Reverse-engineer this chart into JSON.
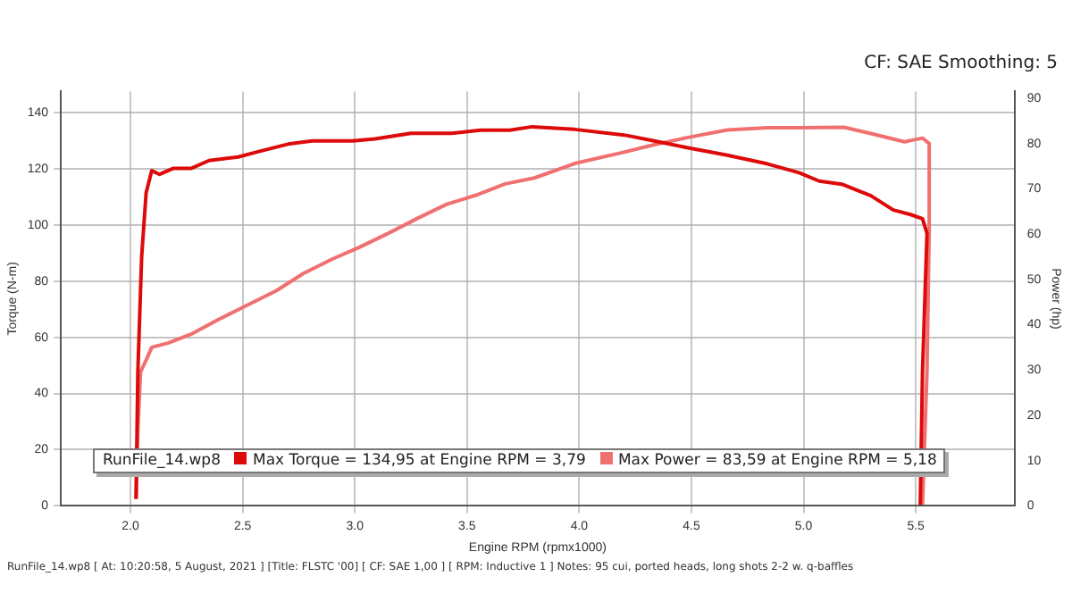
{
  "chart_data": {
    "type": "line",
    "title": "CF: SAE Smoothing: 5",
    "xlabel": "Engine RPM (rpmx1000)",
    "ylabel": "Torque (N-m)",
    "y2label": "Power (hp)",
    "legend_title": "RunFile_14.wp8",
    "legend": "bottom",
    "grid": true,
    "marker": "none",
    "line_style": "solid",
    "xlim": [
      1.69,
      5.94
    ],
    "xticks": [
      {
        "value": 2,
        "label": "2.0"
      },
      2.5,
      {
        "value": 3,
        "label": "3.0"
      },
      3.5,
      {
        "value": 4,
        "label": "4.0"
      },
      4.5,
      {
        "value": 5,
        "label": "5.0"
      },
      5.5
    ],
    "ylim": [
      0,
      147.5
    ],
    "yticks": [
      0,
      20,
      40,
      60,
      80,
      100,
      120,
      140
    ],
    "y2lim": [
      0,
      91.5
    ],
    "y2ticks": [
      0,
      10,
      20,
      30,
      40,
      50,
      60,
      70,
      80,
      90
    ],
    "series": [
      {
        "name": "Max Torque = 134,95 at Engine RPM = 3,79",
        "color": "#dd0a0a",
        "x": [
          2.025,
          2.033,
          2.05,
          2.07,
          2.095,
          2.13,
          2.19,
          2.27,
          2.35,
          2.48,
          2.58,
          2.71,
          2.81,
          2.99,
          3.09,
          3.25,
          3.43,
          3.56,
          3.69,
          3.79,
          3.98,
          4.2,
          4.33,
          4.48,
          4.66,
          4.84,
          4.98,
          5.07,
          5.17,
          5.3,
          5.4,
          5.48,
          5.53,
          5.55,
          5.53,
          5.52
        ],
        "values": [
          2.5,
          47.7,
          88.8,
          111.5,
          119.3,
          118,
          120.1,
          120.1,
          122.9,
          124.2,
          126.3,
          128.9,
          129.9,
          129.9,
          130.6,
          132.6,
          132.6,
          133.7,
          133.7,
          134.95,
          134,
          132,
          130,
          127.5,
          124.8,
          121.7,
          118.6,
          115.6,
          114.5,
          110.4,
          105.3,
          103.6,
          102.2,
          97,
          47.7,
          0.4
        ]
      },
      {
        "name": "Max Power = 83,59 at Engine RPM = 5,18",
        "color": "#f07070",
        "axis": "y2",
        "x": [
          2.025,
          2.033,
          2.045,
          2.07,
          2.095,
          2.17,
          2.27,
          2.39,
          2.52,
          2.65,
          2.77,
          2.9,
          3.02,
          3.15,
          3.28,
          3.41,
          3.54,
          3.67,
          3.8,
          3.98,
          4.2,
          4.33,
          4.48,
          4.66,
          4.84,
          4.98,
          5.18,
          5.3,
          5.45,
          5.5,
          5.53,
          5.56,
          5.56,
          5.55,
          5.53
        ],
        "values": [
          1.5,
          16.9,
          29.6,
          32.2,
          35,
          36,
          37.9,
          41.1,
          44.3,
          47.5,
          51.3,
          54.5,
          57.1,
          60.2,
          63.5,
          66.6,
          68.6,
          71.1,
          72.4,
          75.6,
          78.1,
          79.7,
          81.3,
          83,
          83.5,
          83.5,
          83.59,
          82.2,
          80.4,
          80.9,
          81.2,
          80,
          61.5,
          29.6,
          0.3
        ]
      }
    ],
    "annotations": [
      "RunFile_14.wp8 [ At: 10:20:58, 5 August, 2021 ] [Title: FLSTC '00] [ CF: SAE 1,00 ] [ RPM: Inductive 1 ] Notes: 95 cui, ported heads, long shots 2-2 w. q-baffles"
    ]
  }
}
